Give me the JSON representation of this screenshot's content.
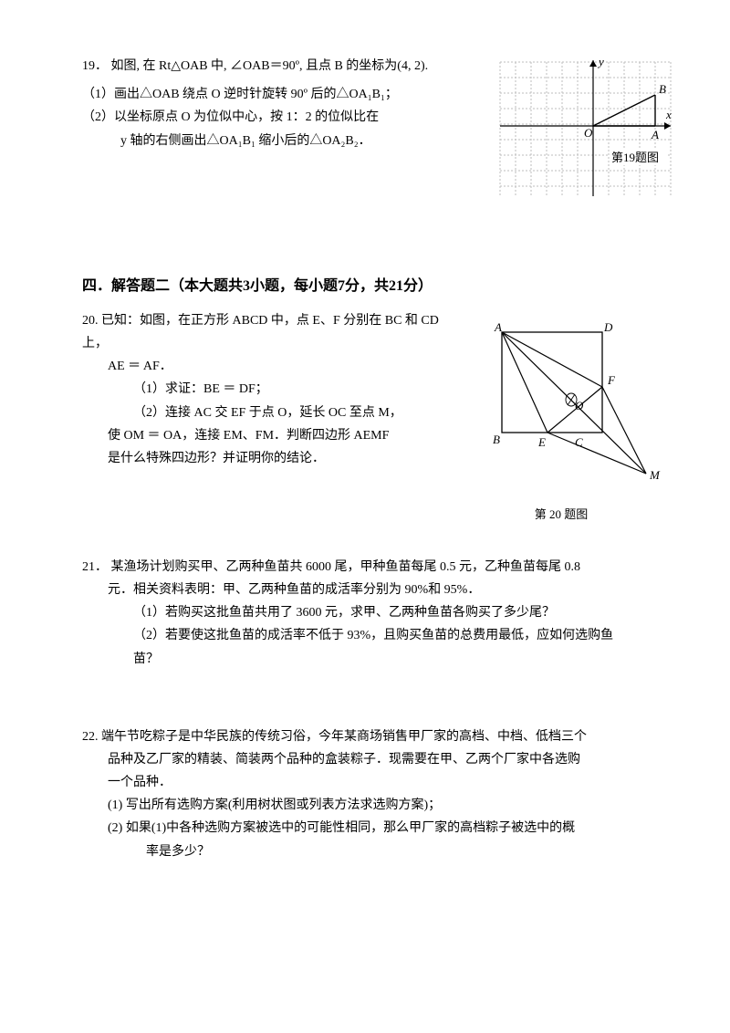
{
  "q19": {
    "num": "19．",
    "stem": "如图, 在 Rt△OAB 中, ∠OAB＝90º, 且点 B 的坐标为(4, 2).",
    "p1": "（1）画出△OAB 绕点 O 逆时针旋转 90º 后的△OA₁B₁；",
    "p2a": "（2）以坐标原点 O 为位似中心，按 1：2 的位似比在",
    "p2b": "y 轴的右侧画出△OA₁B₁ 缩小后的△OA₂B₂．",
    "fig_label": "第19题图",
    "grid": {
      "w": 190,
      "h": 150,
      "cell": 17,
      "color": "#bdbdbd",
      "axis_color": "#000"
    },
    "labels": {
      "O": "O",
      "A": "A",
      "B": "B",
      "x": "x",
      "y": "y"
    }
  },
  "section4": "四．解答题二（本大题共3小题，每小题7分，共21分）",
  "q20": {
    "num": "20.",
    "stem": "已知：如图，在正方形 ABCD 中，点 E、F 分别在 BC 和 CD 上，",
    "l1": "AE ＝ AF．",
    "l2": "（1）求证：BE ＝ DF；",
    "l3": "（2）连接 AC 交 EF 于点 O，延长 OC 至点 M，",
    "l4": "使 OM ＝ OA，连接 EM、FM．判断四边形 AEMF",
    "l5": "是什么特殊四边形？并证明你的结论．",
    "fig_label": "第 20 题图",
    "labels": {
      "A": "A",
      "B": "B",
      "C": "C",
      "D": "D",
      "E": "E",
      "F": "F",
      "O": "O",
      "M": "M"
    }
  },
  "q21": {
    "num": "21．",
    "stem": "某渔场计划购买甲、乙两种鱼苗共 6000 尾，甲种鱼苗每尾 0.5 元，乙种鱼苗每尾 0.8",
    "stem2": "元．相关资料表明：甲、乙两种鱼苗的成活率分别为 90%和 95%．",
    "p1": "（1）若购买这批鱼苗共用了 3600 元，求甲、乙两种鱼苗各购买了多少尾？",
    "p2": "（2）若要使这批鱼苗的成活率不低于 93%，且购买鱼苗的总费用最低，应如何选购鱼",
    "p2b": "苗？"
  },
  "q22": {
    "num": "22.",
    "stem": "端午节吃粽子是中华民族的传统习俗，今年某商场销售甲厂家的高档、中档、低档三个",
    "stem2": "品种及乙厂家的精装、简装两个品种的盒装粽子．现需要在甲、乙两个厂家中各选购",
    "stem3": "一个品种．",
    "p1": "(1)  写出所有选购方案(利用树状图或列表方法求选购方案)；",
    "p2": "(2)  如果(1)中各种选购方案被选中的可能性相同，那么甲厂家的高档粽子被选中的概",
    "p2b": "率是多少？"
  }
}
